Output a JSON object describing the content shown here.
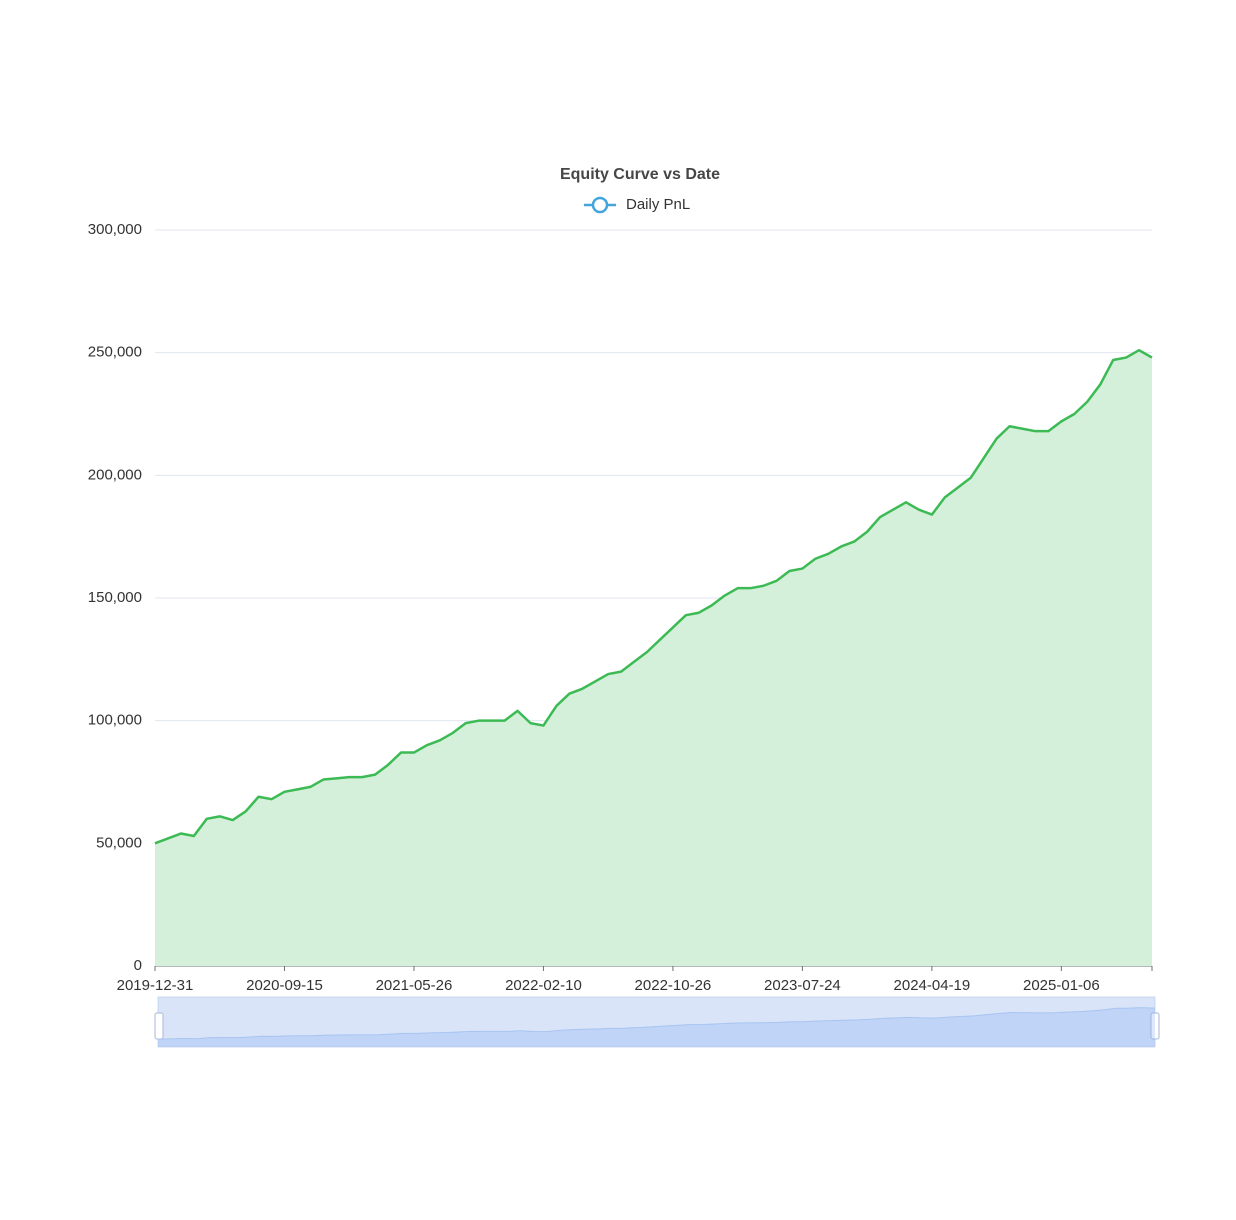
{
  "chart_data": {
    "type": "line",
    "title": "Equity Curve vs Date",
    "categories": [
      "2019-12-31",
      null,
      null,
      null,
      null,
      null,
      null,
      null,
      null,
      null,
      "2020-09-15",
      null,
      null,
      null,
      null,
      null,
      null,
      null,
      null,
      null,
      "2021-05-26",
      null,
      null,
      null,
      null,
      null,
      null,
      null,
      null,
      null,
      "2022-02-10",
      null,
      null,
      null,
      null,
      null,
      null,
      null,
      null,
      null,
      "2022-10-26",
      null,
      null,
      null,
      null,
      null,
      null,
      null,
      null,
      null,
      "2023-07-24",
      null,
      null,
      null,
      null,
      null,
      null,
      null,
      null,
      null,
      "2024-04-19",
      null,
      null,
      null,
      null,
      null,
      null,
      null,
      null,
      null,
      "2025-01-06",
      null,
      null,
      null,
      null,
      null,
      null,
      null
    ],
    "series": [
      {
        "name": "Daily PnL",
        "color": "#3cba54",
        "area_color": "#d5f0da",
        "legend_color": "#42a5db",
        "values": [
          50000,
          52000,
          54000,
          53000,
          60000,
          61000,
          59500,
          63000,
          69000,
          68000,
          71000,
          72000,
          73000,
          76000,
          76500,
          77000,
          77000,
          78000,
          82000,
          87000,
          87000,
          90000,
          92000,
          95000,
          99000,
          100000,
          100000,
          100000,
          104000,
          99000,
          98000,
          106000,
          111000,
          113000,
          116000,
          119000,
          120000,
          124000,
          128000,
          133000,
          138000,
          143000,
          144000,
          147000,
          151000,
          154000,
          154000,
          155000,
          157000,
          161000,
          162000,
          166000,
          168000,
          171000,
          173000,
          177000,
          183000,
          186000,
          189000,
          186000,
          184000,
          191000,
          195000,
          199000,
          207000,
          215000,
          220000,
          219000,
          218000,
          218000,
          222000,
          225000,
          230000,
          237000,
          247000,
          248000,
          251000,
          248000
        ]
      }
    ],
    "ylim": [
      0,
      300000
    ],
    "yticks": [
      0,
      {
        "value": 50000,
        "label": "50,000"
      },
      {
        "value": 100000,
        "label": "100,000"
      },
      {
        "value": 150000,
        "label": "150,000"
      },
      {
        "value": 200000,
        "label": "200,000"
      },
      {
        "value": 250000,
        "label": "250,000"
      },
      {
        "value": 300000,
        "label": "300,000"
      }
    ],
    "grid": true
  }
}
